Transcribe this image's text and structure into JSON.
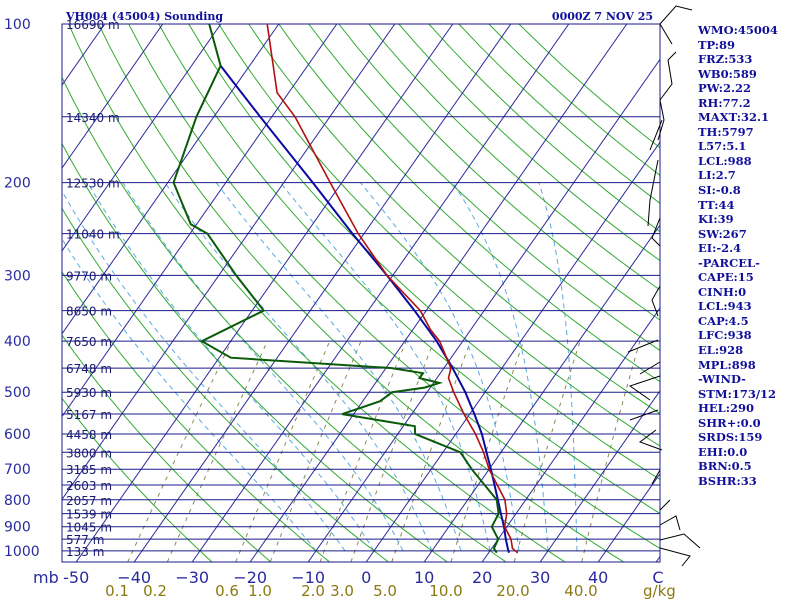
{
  "header": {
    "station": "VH004 (45004) Sounding",
    "time": "0000Z  7 NOV 25"
  },
  "indices": [
    "WMO:45004",
    "TP:89",
    "FRZ:533",
    "WB0:589",
    "PW:2.22",
    "RH:77.2",
    "MAXT:32.1",
    "TH:5797",
    "L57:5.1",
    "LCL:988",
    "LI:2.7",
    "SI:-0.8",
    "TT:44",
    "KI:39",
    "SW:267",
    "EI:-2.4",
    "-PARCEL-",
    "CAPE:15",
    "CINH:0",
    "LCL:943",
    "CAP:4.5",
    "LFC:938",
    "EL:928",
    "MPL:898",
    "-WIND-",
    "STM:173/12",
    "HEL:290",
    "SHR+:0.0",
    "SRDS:159",
    "EHI:0.0",
    "BRN:0.5",
    "BSHR:33"
  ],
  "colors": {
    "background": "#ffffff",
    "isobar": "#1a1a8c",
    "isotherm": "#2a2a9a",
    "dry_adiabat": "#33aa33",
    "moist_adiabat": "#5aaae0",
    "mixing_ratio": "#8a8a55",
    "temperature": "#b01010",
    "dewpoint": "#0a5a0a",
    "parcel": "#0a0aa0",
    "wind": "#000000"
  },
  "chart_data": {
    "type": "skew-t log-p sounding",
    "pressure_axis": {
      "unit": "mb",
      "ticks": [
        100,
        200,
        300,
        400,
        500,
        600,
        700,
        800,
        900,
        1000
      ],
      "range": [
        100,
        1050
      ]
    },
    "temperature_axis": {
      "unit": "C",
      "ticks": [
        -50,
        -40,
        -30,
        -20,
        -10,
        0,
        10,
        20,
        30,
        40
      ],
      "tick_labels": [
        "-50",
        "−40",
        "−30",
        "−20",
        "−10",
        "0",
        "10",
        "20",
        "30",
        "40"
      ],
      "end_label": "C"
    },
    "mixing_ratio_axis": {
      "unit": "g/kg",
      "ticks": [
        0.1,
        0.2,
        0.6,
        1.0,
        2.0,
        3.0,
        5.0,
        10.0,
        20.0,
        40.0
      ],
      "tick_labels": [
        "0.1",
        "0.2",
        "0.6",
        "1.0",
        "2.0",
        "3.0",
        "5.0",
        "10.0",
        "20.0",
        "40.0"
      ]
    },
    "height_labels": [
      {
        "p": 100,
        "label": "16690 m"
      },
      {
        "p": 150,
        "label": "14340 m"
      },
      {
        "p": 200,
        "label": "12530 m"
      },
      {
        "p": 250,
        "label": "11040 m"
      },
      {
        "p": 300,
        "label": "9770 m"
      },
      {
        "p": 350,
        "label": "8650 m"
      },
      {
        "p": 400,
        "label": "7650 m"
      },
      {
        "p": 450,
        "label": "6748 m"
      },
      {
        "p": 500,
        "label": "5930 m"
      },
      {
        "p": 550,
        "label": "5167 m"
      },
      {
        "p": 600,
        "label": "4458 m"
      },
      {
        "p": 650,
        "label": "3800 m"
      },
      {
        "p": 700,
        "label": "3185 m"
      },
      {
        "p": 750,
        "label": "2603 m"
      },
      {
        "p": 800,
        "label": "2057 m"
      },
      {
        "p": 850,
        "label": "1539 m"
      },
      {
        "p": 900,
        "label": "1045 m"
      },
      {
        "p": 950,
        "label": "577 m"
      },
      {
        "p": 1000,
        "label": "133 m"
      }
    ],
    "temperature_profile": [
      {
        "p": 1008,
        "t": 25.0
      },
      {
        "p": 990,
        "t": 23.6
      },
      {
        "p": 950,
        "t": 22.2
      },
      {
        "p": 900,
        "t": 19.6
      },
      {
        "p": 850,
        "t": 18.4
      },
      {
        "p": 800,
        "t": 16.4
      },
      {
        "p": 700,
        "t": 10.0
      },
      {
        "p": 650,
        "t": 7.0
      },
      {
        "p": 600,
        "t": 3.4
      },
      {
        "p": 550,
        "t": -1.0
      },
      {
        "p": 500,
        "t": -5.4
      },
      {
        "p": 470,
        "t": -8.0
      },
      {
        "p": 450,
        "t": -8.8
      },
      {
        "p": 400,
        "t": -14.0
      },
      {
        "p": 380,
        "t": -17.0
      },
      {
        "p": 350,
        "t": -21.0
      },
      {
        "p": 300,
        "t": -31.0
      },
      {
        "p": 250,
        "t": -41.0
      },
      {
        "p": 200,
        "t": -52.0
      },
      {
        "p": 150,
        "t": -66.0
      },
      {
        "p": 135,
        "t": -72.0
      },
      {
        "p": 100,
        "t": -82.0
      }
    ],
    "dewpoint_profile": [
      {
        "p": 1008,
        "t": 21.4
      },
      {
        "p": 990,
        "t": 20.4
      },
      {
        "p": 950,
        "t": 20.0
      },
      {
        "p": 900,
        "t": 17.4
      },
      {
        "p": 850,
        "t": 17.0
      },
      {
        "p": 800,
        "t": 15.0
      },
      {
        "p": 700,
        "t": 7.0
      },
      {
        "p": 650,
        "t": 3.0
      },
      {
        "p": 600,
        "t": -7.0
      },
      {
        "p": 580,
        "t": -8.0
      },
      {
        "p": 550,
        "t": -22.0
      },
      {
        "p": 520,
        "t": -17.0
      },
      {
        "p": 500,
        "t": -16.0
      },
      {
        "p": 490,
        "t": -11.0
      },
      {
        "p": 480,
        "t": -9.0
      },
      {
        "p": 470,
        "t": -13.0
      },
      {
        "p": 460,
        "t": -13.0
      },
      {
        "p": 450,
        "t": -19.0
      },
      {
        "p": 430,
        "t": -48.0
      },
      {
        "p": 400,
        "t": -55.0
      },
      {
        "p": 350,
        "t": -48.0
      },
      {
        "p": 300,
        "t": -57.0
      },
      {
        "p": 250,
        "t": -67.0
      },
      {
        "p": 240,
        "t": -71.0
      },
      {
        "p": 200,
        "t": -79.0
      },
      {
        "p": 150,
        "t": -83.0
      },
      {
        "p": 120,
        "t": -85.0
      },
      {
        "p": 100,
        "t": -92.0
      }
    ],
    "parcel_profile": [
      {
        "p": 1008,
        "t": 23.5
      },
      {
        "p": 990,
        "t": 22.8
      },
      {
        "p": 950,
        "t": 21.3
      },
      {
        "p": 900,
        "t": 19.5
      },
      {
        "p": 850,
        "t": 17.4
      },
      {
        "p": 800,
        "t": 15.2
      },
      {
        "p": 700,
        "t": 10.3
      },
      {
        "p": 650,
        "t": 7.5
      },
      {
        "p": 600,
        "t": 4.5
      },
      {
        "p": 550,
        "t": 0.8
      },
      {
        "p": 500,
        "t": -3.4
      },
      {
        "p": 450,
        "t": -8.5
      },
      {
        "p": 400,
        "t": -14.5
      },
      {
        "p": 350,
        "t": -22.0
      },
      {
        "p": 300,
        "t": -31.0
      },
      {
        "p": 250,
        "t": -42.0
      },
      {
        "p": 200,
        "t": -55.0
      },
      {
        "p": 150,
        "t": -72.0
      },
      {
        "p": 120,
        "t": -85.0
      }
    ],
    "skew_t": {
      "dry_adiabats_theta_C": [
        -30,
        -20,
        -10,
        0,
        10,
        20,
        30,
        40,
        50,
        60,
        70,
        80,
        90,
        100,
        110,
        120,
        130,
        140,
        150,
        160,
        170,
        180
      ],
      "moist_adiabats_thetaw_C": [
        -10,
        -5,
        0,
        5,
        10,
        15,
        20,
        25,
        30,
        35
      ],
      "mixing_ratio_lines_gkg": [
        0.1,
        0.2,
        0.6,
        1.0,
        2.0,
        3.0,
        5.0,
        10.0,
        20.0,
        40.0
      ],
      "grid": true,
      "legend": "none"
    }
  }
}
